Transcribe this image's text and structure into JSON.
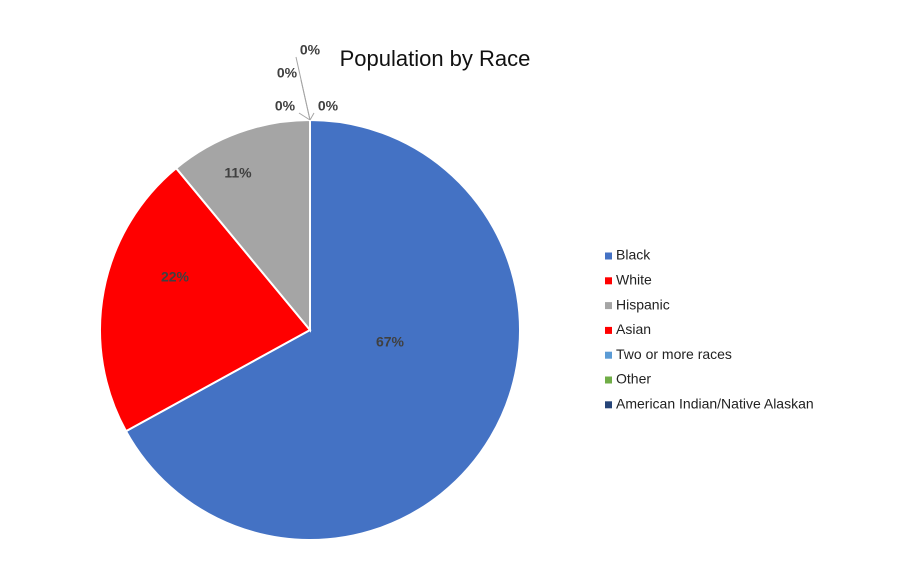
{
  "chart_data": {
    "type": "pie",
    "title": "Population by Race",
    "categories": [
      "Black",
      "White",
      "Hispanic",
      "Asian",
      "Two or more races",
      "Other",
      "American Indian/Native Alaskan"
    ],
    "values": [
      67,
      22,
      11,
      0,
      0,
      0,
      0
    ],
    "value_labels": [
      "67%",
      "22%",
      "11%",
      "0%",
      "0%",
      "0%",
      "0%"
    ],
    "colors": [
      "#4472c4",
      "#ff0000",
      "#a5a5a5",
      "#ff0000",
      "#5b9bd5",
      "#70ad47",
      "#264478"
    ],
    "legend": "right"
  }
}
